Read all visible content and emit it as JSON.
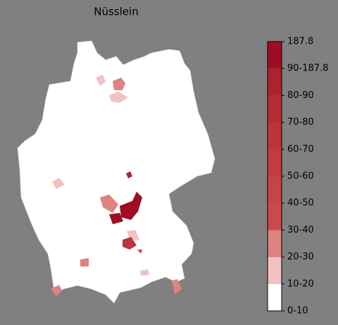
{
  "title": "Nüsslein",
  "colorbar": {
    "labels": [
      "0-10",
      "10-20",
      "20-30",
      "30-40",
      "40-50",
      "50-60",
      "60-70",
      "70-80",
      "80-90",
      "90-187.8",
      "187.8"
    ],
    "colors": [
      "#ffffff",
      "#f0c2c2",
      "#de8282",
      "#c94a4b",
      "#c54446",
      "#c03c40",
      "#bb353a",
      "#b62c34",
      "#ae222d",
      "#9e0e22"
    ]
  }
}
